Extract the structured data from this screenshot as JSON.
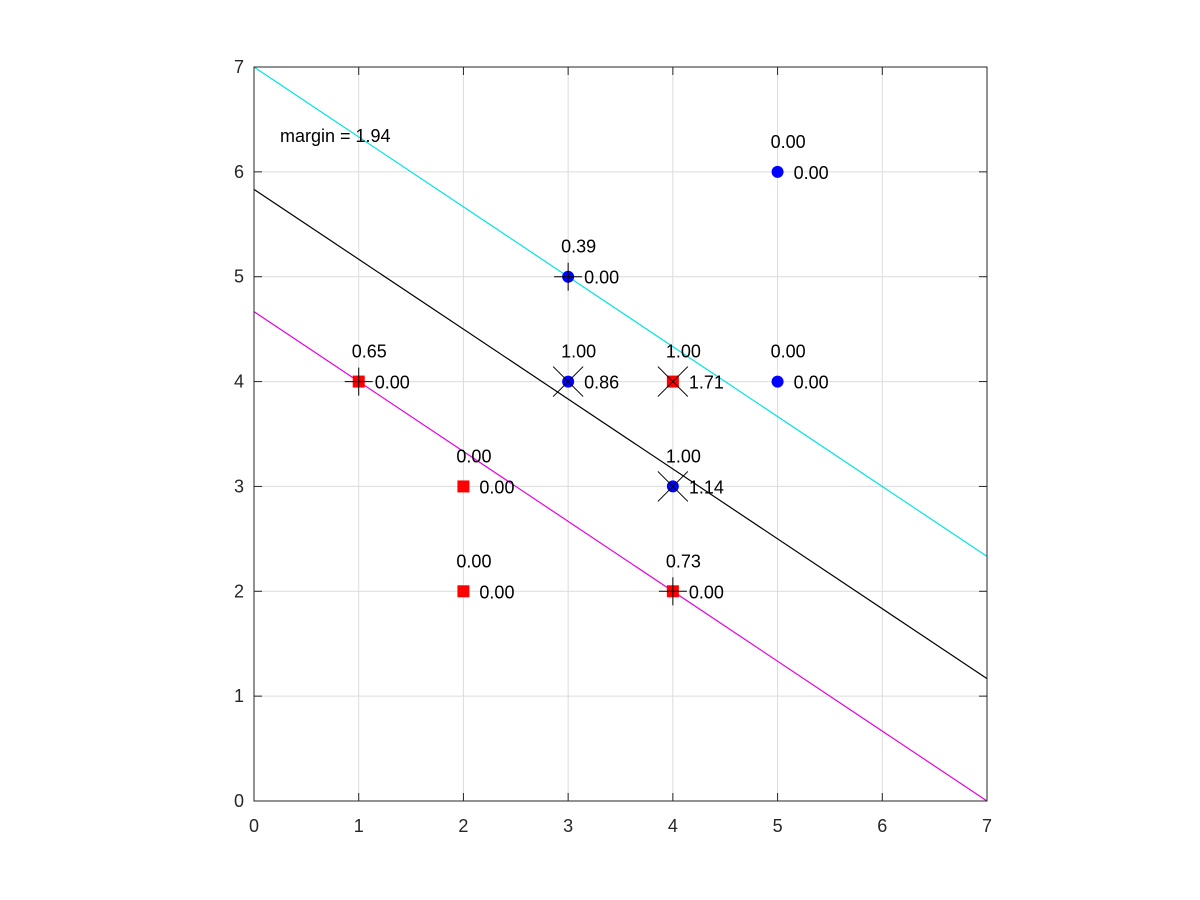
{
  "chart_data": {
    "type": "scatter",
    "title": "",
    "xlabel": "",
    "ylabel": "",
    "xlim": [
      0,
      7
    ],
    "ylim": [
      0,
      7
    ],
    "xticks": [
      "0",
      "1",
      "2",
      "3",
      "4",
      "5",
      "6",
      "7"
    ],
    "yticks": [
      "0",
      "1",
      "2",
      "3",
      "4",
      "5",
      "6",
      "7"
    ],
    "grid": true,
    "annotation": "margin = 1.94",
    "classes": {
      "negative": {
        "marker": "square",
        "color": "#ff0000"
      },
      "positive": {
        "marker": "circle",
        "color": "#0000ff"
      }
    },
    "points": [
      {
        "x": 1,
        "y": 4,
        "class": "negative",
        "top_label": "0.65",
        "right_label": "0.00",
        "mark": "plus"
      },
      {
        "x": 2,
        "y": 3,
        "class": "negative",
        "top_label": "0.00",
        "right_label": "0.00",
        "mark": "none"
      },
      {
        "x": 2,
        "y": 2,
        "class": "negative",
        "top_label": "0.00",
        "right_label": "0.00",
        "mark": "none"
      },
      {
        "x": 4,
        "y": 2,
        "class": "negative",
        "top_label": "0.73",
        "right_label": "0.00",
        "mark": "plus"
      },
      {
        "x": 4,
        "y": 4,
        "class": "negative",
        "top_label": "1.00",
        "right_label": "1.71",
        "mark": "cross"
      },
      {
        "x": 3,
        "y": 5,
        "class": "positive",
        "top_label": "0.39",
        "right_label": "0.00",
        "mark": "plus"
      },
      {
        "x": 3,
        "y": 4,
        "class": "positive",
        "top_label": "1.00",
        "right_label": "0.86",
        "mark": "cross"
      },
      {
        "x": 4,
        "y": 3,
        "class": "positive",
        "top_label": "1.00",
        "right_label": "1.14",
        "mark": "cross"
      },
      {
        "x": 5,
        "y": 4,
        "class": "positive",
        "top_label": "0.00",
        "right_label": "0.00",
        "mark": "none"
      },
      {
        "x": 5,
        "y": 6,
        "class": "positive",
        "top_label": "0.00",
        "right_label": "0.00",
        "mark": "none"
      }
    ],
    "lines": [
      {
        "role": "upper-margin",
        "color": "#00e5e5",
        "x": [
          0,
          7
        ],
        "y": [
          7.0,
          2.333
        ]
      },
      {
        "role": "decision-boundary",
        "color": "#000000",
        "x": [
          0,
          7
        ],
        "y": [
          5.833,
          1.167
        ]
      },
      {
        "role": "lower-margin",
        "color": "#e500e5",
        "x": [
          0,
          7
        ],
        "y": [
          4.667,
          0.0
        ]
      }
    ]
  }
}
